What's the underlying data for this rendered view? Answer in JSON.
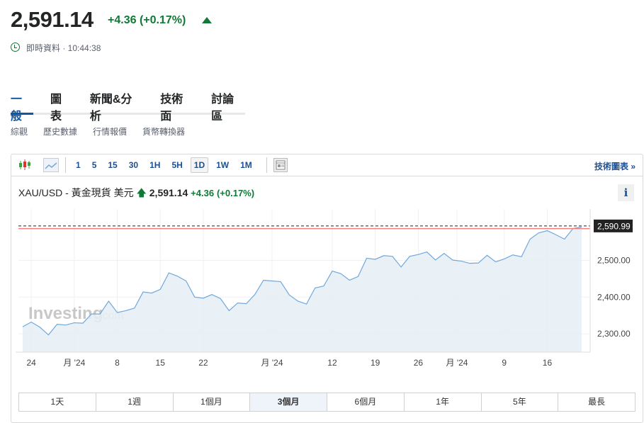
{
  "header": {
    "price": "2,591.14",
    "change": "+4.36",
    "change_pct": "(+0.17%)",
    "status": "即時資料 · 10:44:38",
    "up_color": "#0e7a35"
  },
  "tabs": [
    {
      "label": "一般",
      "active": true
    },
    {
      "label": "圖表"
    },
    {
      "label": "新聞&分析"
    },
    {
      "label": "技術面"
    },
    {
      "label": "討論區"
    }
  ],
  "subtabs": [
    "綜觀",
    "歷史數據",
    "行情報價",
    "貨幣轉換器"
  ],
  "toolbar": {
    "intervals": [
      "1",
      "5",
      "15",
      "30",
      "1H",
      "5H",
      "1D",
      "1W",
      "1M"
    ],
    "selected": "1D",
    "tech_chart_link": "技術圖表 »"
  },
  "chart_title": {
    "name": "XAU/USD - 黃金現貨 美元",
    "price": "2,591.14",
    "change": "+4.36",
    "change_pct": "(+0.17%)"
  },
  "info_button": "i",
  "ranges": {
    "items": [
      "1天",
      "1週",
      "1個月",
      "3個月",
      "6個月",
      "1年",
      "5年",
      "最長"
    ],
    "selected": "3個月"
  },
  "chart_data": {
    "type": "area",
    "x": [
      "2024-06-21",
      "2024-06-24",
      "2024-06-25",
      "2024-06-26",
      "2024-06-27",
      "2024-06-28",
      "2024-07-01",
      "2024-07-02",
      "2024-07-03",
      "2024-07-04",
      "2024-07-05",
      "2024-07-08",
      "2024-07-09",
      "2024-07-10",
      "2024-07-11",
      "2024-07-12",
      "2024-07-15",
      "2024-07-16",
      "2024-07-17",
      "2024-07-18",
      "2024-07-19",
      "2024-07-22",
      "2024-07-23",
      "2024-07-24",
      "2024-07-25",
      "2024-07-26",
      "2024-07-29",
      "2024-07-30",
      "2024-07-31",
      "2024-08-01",
      "2024-08-02",
      "2024-08-05",
      "2024-08-06",
      "2024-08-07",
      "2024-08-08",
      "2024-08-09",
      "2024-08-12",
      "2024-08-13",
      "2024-08-14",
      "2024-08-15",
      "2024-08-16",
      "2024-08-19",
      "2024-08-20",
      "2024-08-21",
      "2024-08-22",
      "2024-08-23",
      "2024-08-26",
      "2024-08-27",
      "2024-08-28",
      "2024-08-29",
      "2024-08-30",
      "2024-09-02",
      "2024-09-03",
      "2024-09-04",
      "2024-09-05",
      "2024-09-06",
      "2024-09-09",
      "2024-09-10",
      "2024-09-11",
      "2024-09-12",
      "2024-09-13",
      "2024-09-16",
      "2024-09-17",
      "2024-09-18",
      "2024-09-19",
      "2024-09-20"
    ],
    "values": [
      2319,
      2332,
      2318,
      2297,
      2326,
      2324,
      2330,
      2329,
      2354,
      2354,
      2389,
      2358,
      2363,
      2370,
      2414,
      2411,
      2421,
      2466,
      2457,
      2444,
      2400,
      2397,
      2407,
      2396,
      2363,
      2384,
      2382,
      2407,
      2446,
      2444,
      2442,
      2406,
      2389,
      2381,
      2425,
      2430,
      2471,
      2464,
      2446,
      2456,
      2506,
      2503,
      2513,
      2511,
      2482,
      2511,
      2516,
      2523,
      2501,
      2519,
      2501,
      2498,
      2492,
      2493,
      2514,
      2496,
      2504,
      2515,
      2510,
      2558,
      2575,
      2581,
      2570,
      2558,
      2587,
      2591
    ],
    "xticks": [
      {
        "label": "24",
        "date": "2024-06-24"
      },
      {
        "label": "月 '24",
        "date": "2024-07-01"
      },
      {
        "label": "8",
        "date": "2024-07-08"
      },
      {
        "label": "15",
        "date": "2024-07-15"
      },
      {
        "label": "22",
        "date": "2024-07-22"
      },
      {
        "label": "月 '24",
        "date": "2024-08-01"
      },
      {
        "label": "12",
        "date": "2024-08-12"
      },
      {
        "label": "19",
        "date": "2024-08-19"
      },
      {
        "label": "26",
        "date": "2024-08-26"
      },
      {
        "label": "月 '24",
        "date": "2024-09-01"
      },
      {
        "label": "9",
        "date": "2024-09-09"
      },
      {
        "label": "16",
        "date": "2024-09-16"
      }
    ],
    "yticks": [
      {
        "label": "2,300.00",
        "value": 2300
      },
      {
        "label": "2,400.00",
        "value": 2400
      },
      {
        "label": "2,500.00",
        "value": 2500
      }
    ],
    "ylim": [
      2250,
      2640
    ],
    "current_line": {
      "value": 2590.99,
      "label": "2,590.99"
    },
    "prev_close_line": {
      "value": 2586.78
    },
    "line_color": "#6fa8dc",
    "fill_color": "#e5eef6",
    "prev_close_color": "#f08080",
    "watermark": "Investing.com",
    "grid": true
  }
}
